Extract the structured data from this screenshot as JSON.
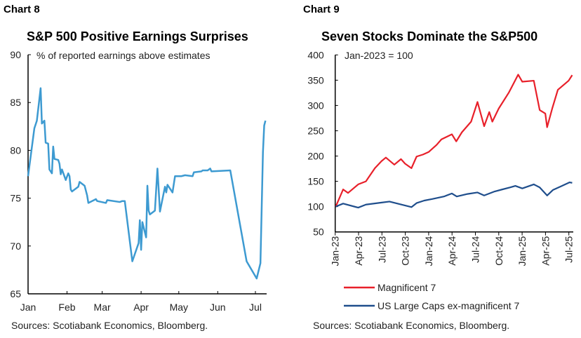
{
  "left": {
    "label": "Chart 8",
    "source": "Sources: Scotiabank Economics, Bloomberg."
  },
  "right": {
    "label": "Chart 9",
    "source": "Sources: Scotiabank Economics, Bloomberg."
  },
  "chart_data": [
    {
      "type": "line",
      "title": "S&P 500 Positive Earnings Surprises",
      "subtitle": "% of reported earnings above estimates",
      "ylim": [
        65,
        90
      ],
      "yticks": [
        65,
        70,
        75,
        80,
        85,
        90
      ],
      "xticks": [
        "Jan",
        "Feb",
        "Mar",
        "Apr",
        "May",
        "Jun",
        "Jul"
      ],
      "color": "#3d9ad1",
      "grid": false,
      "series": [
        {
          "x": [
            "01-01",
            "01-06",
            "01-08",
            "01-11",
            "01-12",
            "01-14",
            "01-15",
            "01-17",
            "01-18",
            "01-20",
            "01-21",
            "01-22",
            "01-25",
            "01-26",
            "01-27",
            "01-28",
            "01-31",
            "02-02",
            "02-03",
            "02-04",
            "02-05",
            "02-10",
            "02-11",
            "02-15",
            "02-17",
            "02-18",
            "02-24",
            "02-25",
            "03-04",
            "03-05",
            "03-15",
            "03-17",
            "03-19",
            "03-25",
            "03-30",
            "03-31",
            "04-01",
            "04-02",
            "04-05",
            "04-06",
            "04-07",
            "04-08",
            "04-12",
            "04-14",
            "04-16",
            "04-20",
            "04-21",
            "04-22",
            "04-26",
            "04-28",
            "05-03",
            "05-06",
            "05-12",
            "05-13",
            "05-19",
            "05-20",
            "05-24",
            "05-26",
            "05-27",
            "06-11",
            "06-24",
            "07-02",
            "07-05",
            "07-07",
            "07-08",
            "07-09"
          ],
          "y": [
            77.3,
            82.3,
            83.1,
            86.5,
            82.8,
            83.1,
            80.8,
            80.7,
            78.0,
            77.6,
            80.4,
            79.1,
            79.0,
            78.6,
            77.5,
            78.0,
            76.9,
            77.6,
            77.3,
            75.9,
            75.7,
            76.2,
            76.7,
            76.3,
            75.3,
            74.5,
            74.9,
            74.7,
            74.5,
            74.8,
            74.6,
            74.7,
            74.7,
            68.4,
            70.3,
            72.7,
            69.6,
            72.5,
            70.9,
            76.3,
            73.7,
            73.3,
            73.7,
            78.1,
            73.6,
            76.2,
            75.6,
            76.4,
            75.6,
            77.3,
            77.3,
            77.4,
            77.3,
            77.7,
            77.8,
            77.9,
            77.9,
            78.1,
            77.8,
            77.9,
            68.4,
            66.6,
            68.2,
            79.8,
            82.6,
            83.1
          ]
        }
      ]
    },
    {
      "type": "line",
      "title": "Seven Stocks Dominate the S&P500",
      "subtitle": "Jan-2023 = 100",
      "ylim": [
        50,
        400
      ],
      "yticks": [
        50,
        100,
        150,
        200,
        250,
        300,
        350,
        400
      ],
      "xticks": [
        "Jan-23",
        "Apr-23",
        "Jul-23",
        "Oct-23",
        "Jan-24",
        "Apr-24",
        "Jul-24",
        "Oct-24",
        "Jan-25",
        "Apr-25",
        "Jul-25"
      ],
      "grid": false,
      "legend": "bottom",
      "series": [
        {
          "name": "Magnificent 7",
          "color": "#e8202a",
          "x": [
            "2023-01-03",
            "2023-02-01",
            "2023-02-20",
            "2023-04-01",
            "2023-05-01",
            "2023-06-05",
            "2023-07-01",
            "2023-07-18",
            "2023-08-20",
            "2023-09-15",
            "2023-10-01",
            "2023-10-26",
            "2023-11-15",
            "2023-12-10",
            "2024-01-01",
            "2024-02-01",
            "2024-02-20",
            "2024-04-01",
            "2024-04-18",
            "2024-05-10",
            "2024-06-15",
            "2024-07-10",
            "2024-08-05",
            "2024-08-25",
            "2024-09-06",
            "2024-10-01",
            "2024-11-10",
            "2024-12-16",
            "2025-01-01",
            "2025-02-15",
            "2025-03-10",
            "2025-04-01",
            "2025-04-08",
            "2025-04-28",
            "2025-05-20",
            "2025-07-01",
            "2025-07-15"
          ],
          "y": [
            100,
            134,
            127,
            144,
            150,
            176,
            190,
            197,
            183,
            194,
            185,
            176,
            199,
            203,
            208,
            222,
            233,
            243,
            229,
            247,
            268,
            307,
            259,
            287,
            268,
            294,
            326,
            361,
            347,
            349,
            291,
            284,
            257,
            294,
            331,
            349,
            360
          ]
        },
        {
          "name": "US Large Caps ex-magnificent 7",
          "color": "#1f4e8c",
          "x": [
            "2023-01-03",
            "2023-02-01",
            "2023-04-01",
            "2023-05-01",
            "2023-07-01",
            "2023-08-01",
            "2023-10-26",
            "2023-11-15",
            "2023-12-15",
            "2024-01-15",
            "2024-03-01",
            "2024-04-01",
            "2024-04-20",
            "2024-06-01",
            "2024-07-10",
            "2024-08-05",
            "2024-09-15",
            "2024-10-15",
            "2024-11-15",
            "2024-12-05",
            "2025-01-01",
            "2025-02-15",
            "2025-03-10",
            "2025-04-08",
            "2025-05-01",
            "2025-06-01",
            "2025-07-05",
            "2025-07-15"
          ],
          "y": [
            100,
            106,
            98,
            104,
            108,
            110,
            99,
            107,
            112,
            115,
            120,
            126,
            120,
            125,
            128,
            122,
            130,
            134,
            138,
            141,
            136,
            144,
            138,
            122,
            133,
            140,
            148,
            147
          ]
        }
      ]
    }
  ]
}
